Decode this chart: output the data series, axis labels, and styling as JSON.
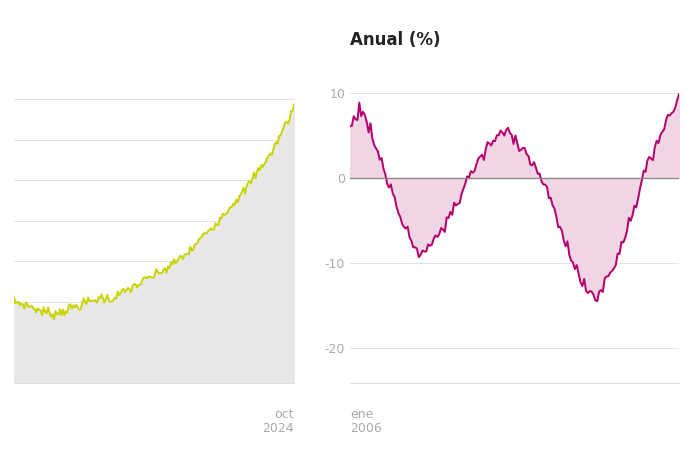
{
  "background_color": "#ffffff",
  "chart1": {
    "line_color": "#c8d400",
    "fill_color": "#e8e8e8",
    "xlabel_text": "oct\n2024"
  },
  "chart2": {
    "title": "Anual (%)",
    "title_fontsize": 12,
    "line_color": "#b5006e",
    "fill_color": "#f0d5e5",
    "xlabel_text": "ene\n2006",
    "yticks": [
      10,
      0,
      -10,
      -20
    ],
    "ylim": [
      -24,
      14
    ]
  },
  "grid_color": "#dddddd",
  "tick_color": "#aaaaaa",
  "label_fontsize": 9
}
